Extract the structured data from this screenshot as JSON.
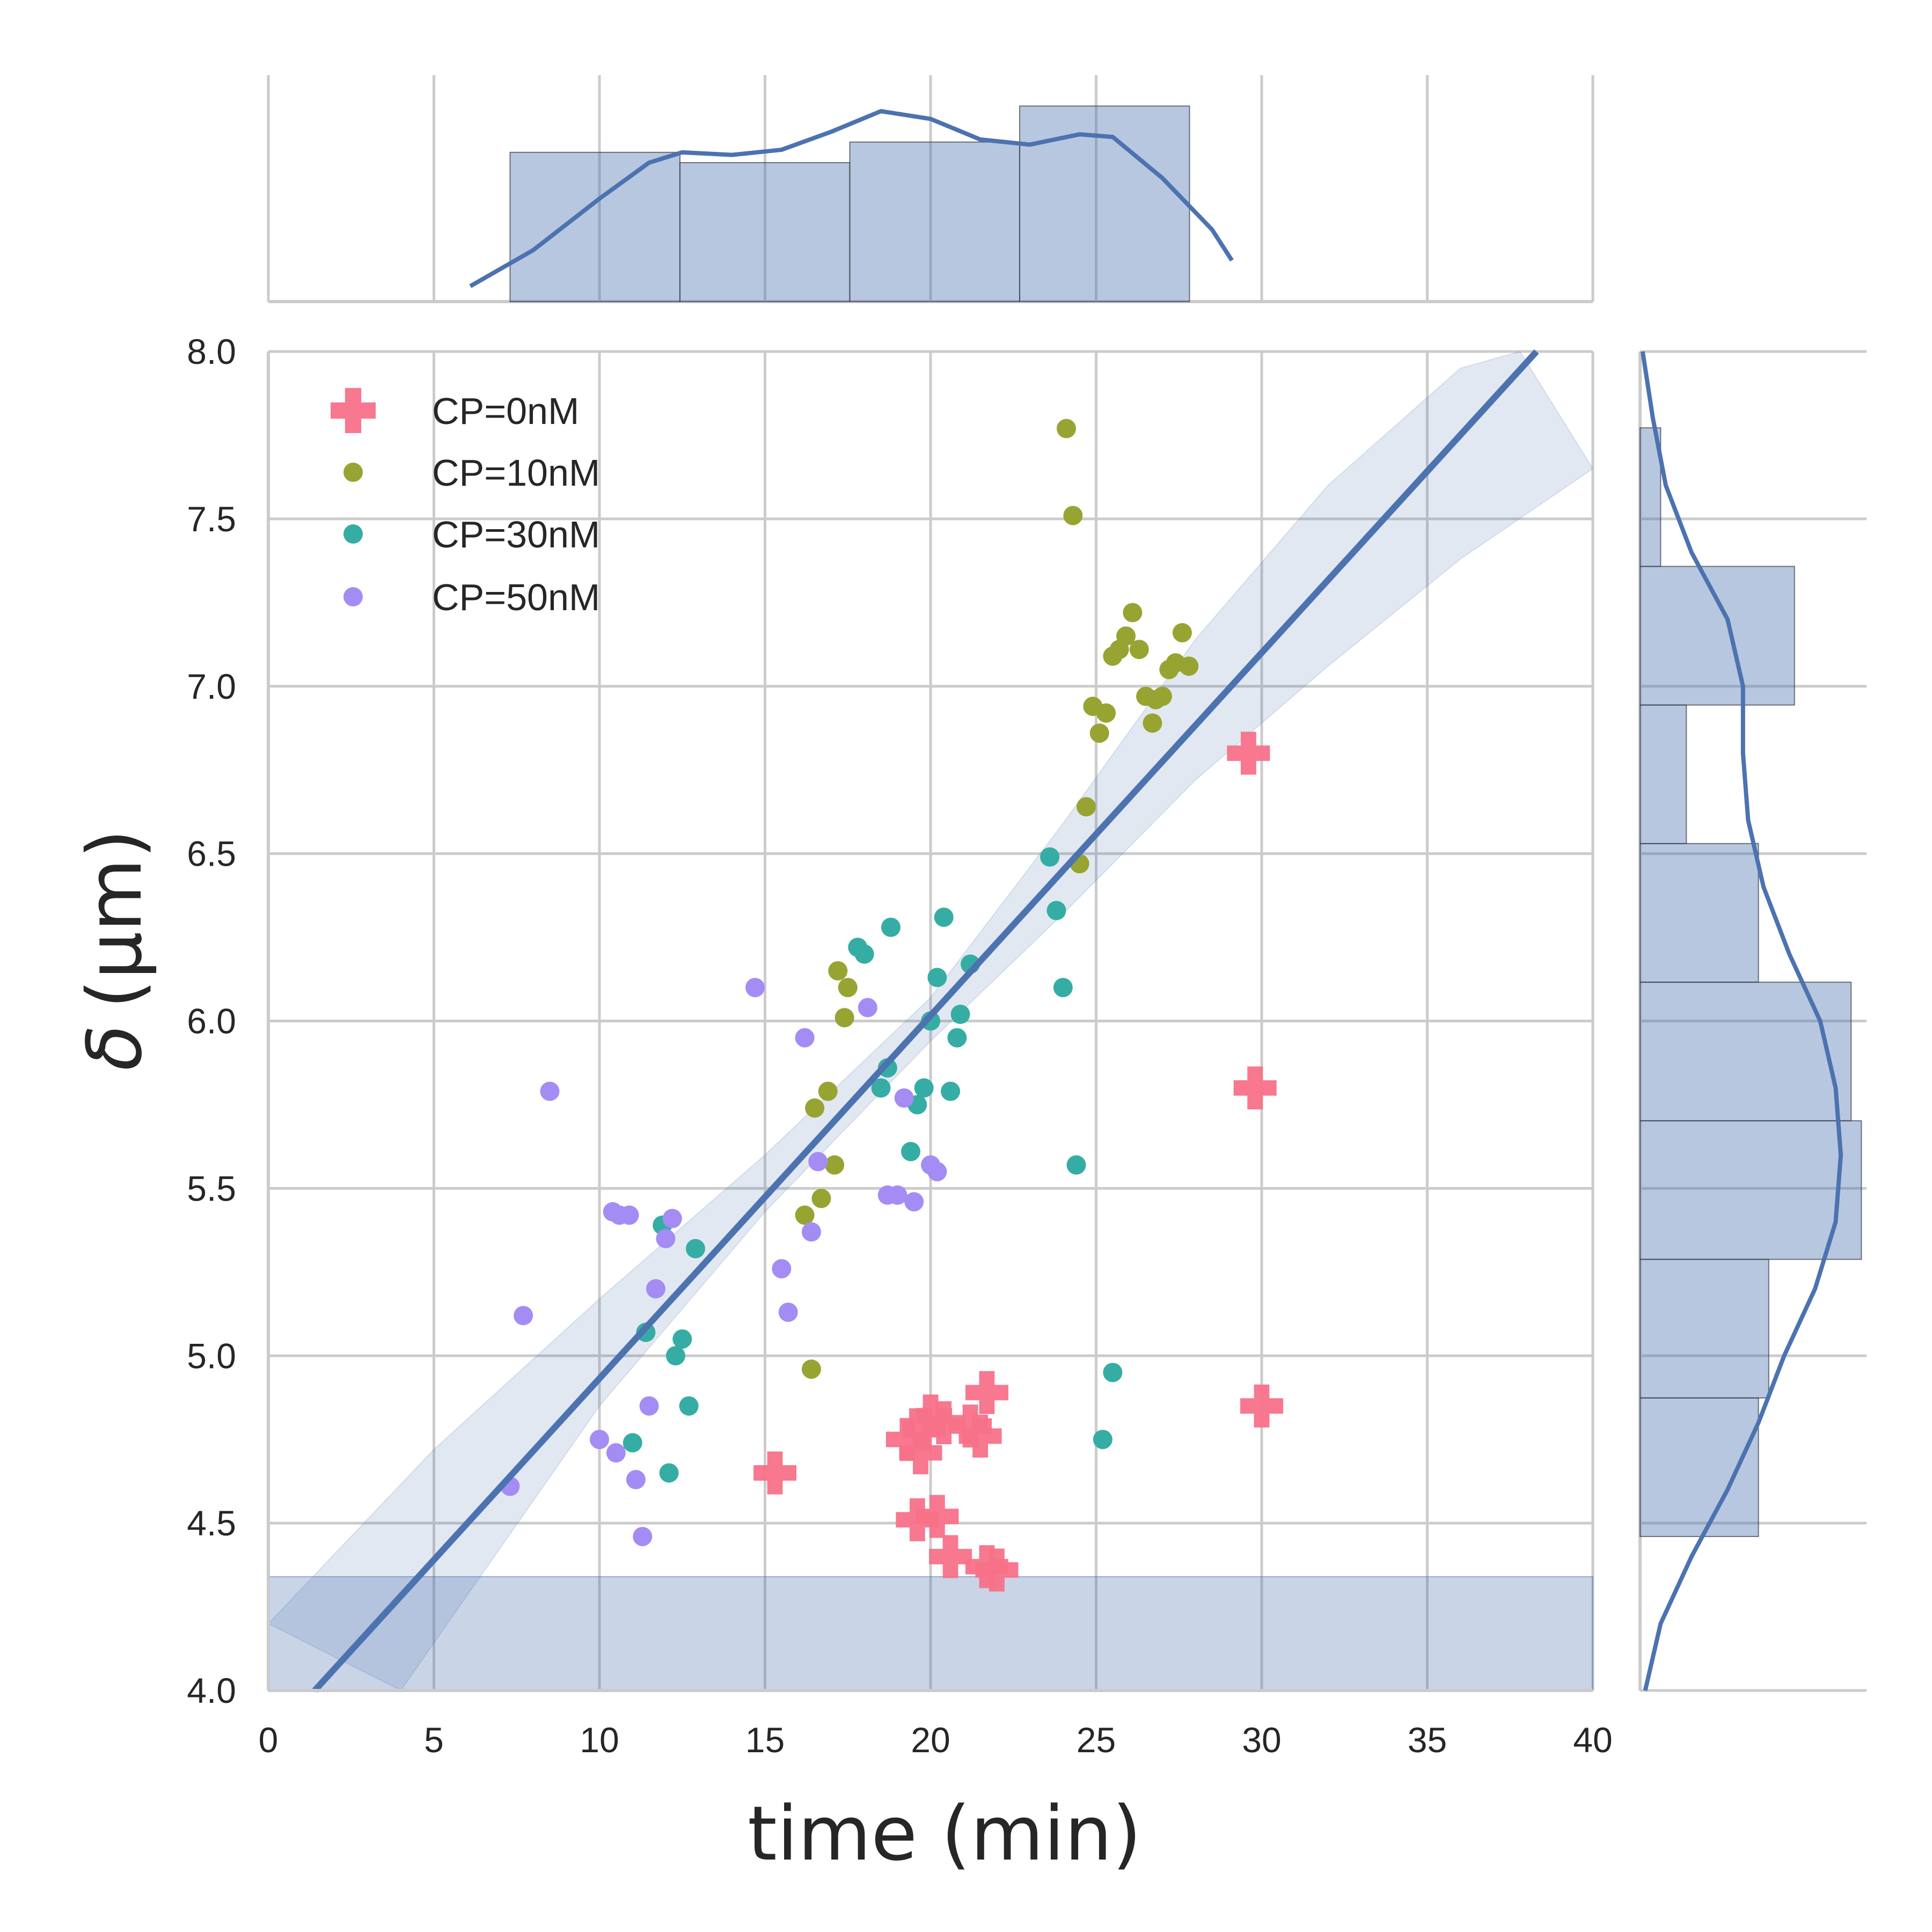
{
  "chart_data": {
    "type": "scatter",
    "variant": "joint plot with regression line, confidence band and marginal histograms/KDE",
    "xlabel": "time (min)",
    "ylabel_symbol": "δ",
    "ylabel_unit": "(μm)",
    "xlim": [
      0,
      40
    ],
    "ylim": [
      4.0,
      8.0
    ],
    "x_ticks": [
      "0",
      "5",
      "10",
      "15",
      "20",
      "25",
      "30",
      "35",
      "40"
    ],
    "y_ticks": [
      "4.0",
      "4.5",
      "5.0",
      "5.5",
      "6.0",
      "6.5",
      "7.0",
      "7.5",
      "8.0"
    ],
    "grid": true,
    "legend_position": "top-left",
    "regression": {
      "color": "#4c72b0",
      "line": [
        [
          1.4,
          4.0
        ],
        [
          38.3,
          8.0
        ]
      ],
      "ci_upper": [
        [
          0,
          4.2
        ],
        [
          5,
          4.72
        ],
        [
          10,
          5.17
        ],
        [
          15,
          5.6
        ],
        [
          20,
          6.07
        ],
        [
          24,
          6.59
        ],
        [
          28,
          7.14
        ],
        [
          32,
          7.6
        ],
        [
          36,
          7.95
        ],
        [
          37.8,
          8.0
        ]
      ],
      "ci_lower": [
        [
          4.0,
          4.0
        ],
        [
          10,
          4.85
        ],
        [
          15,
          5.43
        ],
        [
          20,
          5.94
        ],
        [
          24,
          6.32
        ],
        [
          28,
          6.72
        ],
        [
          32,
          7.06
        ],
        [
          36,
          7.38
        ],
        [
          40,
          7.65
        ]
      ]
    },
    "series": [
      {
        "name": "CP=0nM",
        "marker": "plus",
        "color": "#f77189",
        "points": [
          [
            15.3,
            4.65
          ],
          [
            19.3,
            4.75
          ],
          [
            19.7,
            4.71
          ],
          [
            19.8,
            4.78
          ],
          [
            20.0,
            4.82
          ],
          [
            20.4,
            4.8
          ],
          [
            21.2,
            4.79
          ],
          [
            21.5,
            4.76
          ],
          [
            21.7,
            4.89
          ],
          [
            19.6,
            4.51
          ],
          [
            20.2,
            4.52
          ],
          [
            20.6,
            4.4
          ],
          [
            21.7,
            4.37
          ],
          [
            22.0,
            4.36
          ],
          [
            29.6,
            6.8
          ],
          [
            29.8,
            5.8
          ],
          [
            30.0,
            4.85
          ]
        ]
      },
      {
        "name": "CP=10nM",
        "marker": "circle",
        "color": "#97a431",
        "points": [
          [
            24.1,
            7.77
          ],
          [
            24.3,
            7.51
          ],
          [
            26.1,
            7.22
          ],
          [
            27.6,
            7.16
          ],
          [
            25.9,
            7.15
          ],
          [
            25.7,
            7.11
          ],
          [
            26.3,
            7.11
          ],
          [
            25.5,
            7.09
          ],
          [
            27.4,
            7.07
          ],
          [
            27.8,
            7.06
          ],
          [
            27.2,
            7.05
          ],
          [
            26.5,
            6.97
          ],
          [
            27.0,
            6.97
          ],
          [
            26.8,
            6.96
          ],
          [
            24.9,
            6.94
          ],
          [
            25.3,
            6.92
          ],
          [
            26.7,
            6.89
          ],
          [
            25.1,
            6.86
          ],
          [
            24.7,
            6.64
          ],
          [
            24.5,
            6.47
          ],
          [
            17.2,
            6.15
          ],
          [
            17.5,
            6.1
          ],
          [
            17.4,
            6.01
          ],
          [
            16.9,
            5.79
          ],
          [
            16.5,
            5.74
          ],
          [
            17.1,
            5.57
          ],
          [
            16.7,
            5.47
          ],
          [
            16.2,
            5.42
          ],
          [
            16.4,
            4.96
          ]
        ]
      },
      {
        "name": "CP=30nM",
        "marker": "circle",
        "color": "#36ada4",
        "points": [
          [
            20.4,
            6.31
          ],
          [
            23.6,
            6.49
          ],
          [
            23.8,
            6.33
          ],
          [
            18.8,
            6.28
          ],
          [
            17.8,
            6.22
          ],
          [
            18.0,
            6.2
          ],
          [
            21.2,
            6.17
          ],
          [
            20.2,
            6.13
          ],
          [
            24.0,
            6.1
          ],
          [
            20.9,
            6.02
          ],
          [
            20.0,
            6.0
          ],
          [
            20.8,
            5.95
          ],
          [
            18.7,
            5.86
          ],
          [
            18.5,
            5.8
          ],
          [
            19.8,
            5.8
          ],
          [
            20.6,
            5.79
          ],
          [
            19.6,
            5.75
          ],
          [
            19.4,
            5.61
          ],
          [
            24.4,
            5.57
          ],
          [
            11.9,
            5.39
          ],
          [
            12.9,
            5.32
          ],
          [
            11.4,
            5.07
          ],
          [
            12.5,
            5.05
          ],
          [
            12.3,
            5.0
          ],
          [
            25.5,
            4.95
          ],
          [
            12.7,
            4.85
          ],
          [
            25.2,
            4.75
          ],
          [
            11.0,
            4.74
          ],
          [
            12.1,
            4.65
          ]
        ]
      },
      {
        "name": "CP=50nM",
        "marker": "circle",
        "color": "#a48cf4",
        "points": [
          [
            14.7,
            6.1
          ],
          [
            18.1,
            6.04
          ],
          [
            16.2,
            5.95
          ],
          [
            8.5,
            5.79
          ],
          [
            19.2,
            5.77
          ],
          [
            16.6,
            5.58
          ],
          [
            20.0,
            5.57
          ],
          [
            20.2,
            5.55
          ],
          [
            18.7,
            5.48
          ],
          [
            19.0,
            5.48
          ],
          [
            19.5,
            5.46
          ],
          [
            10.4,
            5.43
          ],
          [
            10.6,
            5.42
          ],
          [
            10.9,
            5.42
          ],
          [
            12.2,
            5.41
          ],
          [
            16.4,
            5.37
          ],
          [
            12.0,
            5.35
          ],
          [
            15.5,
            5.26
          ],
          [
            11.7,
            5.2
          ],
          [
            15.7,
            5.13
          ],
          [
            7.7,
            5.12
          ],
          [
            11.5,
            4.85
          ],
          [
            10.0,
            4.75
          ],
          [
            10.5,
            4.71
          ],
          [
            11.1,
            4.63
          ],
          [
            7.3,
            4.61
          ],
          [
            11.3,
            4.46
          ]
        ]
      }
    ],
    "marginal_x": {
      "color": "#4c72b0",
      "bin_edges": [
        7.3,
        12.43,
        17.56,
        22.69,
        27.82
      ],
      "counts": [
        29,
        27,
        31,
        38
      ],
      "kde": [
        [
          6.1,
          3
        ],
        [
          8,
          10
        ],
        [
          10,
          20
        ],
        [
          11.5,
          27
        ],
        [
          12.5,
          29
        ],
        [
          14,
          28.5
        ],
        [
          15.5,
          29.5
        ],
        [
          17,
          33
        ],
        [
          18.5,
          37
        ],
        [
          20,
          35.5
        ],
        [
          21.5,
          31.5
        ],
        [
          23,
          30.5
        ],
        [
          24.5,
          32.5
        ],
        [
          25.5,
          32
        ],
        [
          27,
          24
        ],
        [
          28.5,
          14
        ],
        [
          29.1,
          8
        ]
      ]
    },
    "marginal_y": {
      "color": "#4c72b0",
      "bin_edges": [
        4.46,
        4.874,
        5.288,
        5.702,
        6.116,
        6.53,
        6.944,
        7.358,
        7.772
      ],
      "counts": [
        23,
        25,
        43,
        41,
        23,
        9,
        30,
        4
      ],
      "kde": [
        [
          4.0,
          1
        ],
        [
          4.2,
          4
        ],
        [
          4.4,
          10
        ],
        [
          4.6,
          17
        ],
        [
          4.8,
          23
        ],
        [
          5.0,
          28
        ],
        [
          5.2,
          34
        ],
        [
          5.4,
          38
        ],
        [
          5.6,
          39
        ],
        [
          5.8,
          38
        ],
        [
          6.0,
          35
        ],
        [
          6.2,
          29
        ],
        [
          6.4,
          24
        ],
        [
          6.6,
          21
        ],
        [
          6.8,
          20
        ],
        [
          7.0,
          20
        ],
        [
          7.2,
          17
        ],
        [
          7.4,
          10
        ],
        [
          7.6,
          5
        ],
        [
          7.8,
          2.5
        ],
        [
          8.0,
          0.5
        ]
      ]
    }
  }
}
